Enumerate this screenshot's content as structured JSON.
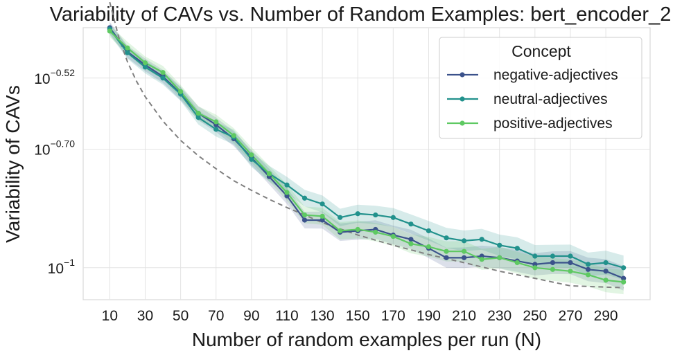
{
  "chart_data": {
    "type": "line",
    "title": "Variability of CAVs vs. Number of Random Examples: bert_encoder_2",
    "xlabel": "Number of random examples per run (N)",
    "ylabel": "Variability of CAVs",
    "y_scale": "log",
    "xlim": [
      -5,
      315
    ],
    "ylim": [
      0.083,
      0.405
    ],
    "x_ticks": [
      10,
      30,
      50,
      70,
      90,
      110,
      130,
      150,
      170,
      190,
      210,
      230,
      250,
      270,
      290
    ],
    "y_ticks": [
      {
        "value": 0.302,
        "base": "10",
        "exp": "−0.52"
      },
      {
        "value": 0.1995,
        "base": "10",
        "exp": "−0.70"
      },
      {
        "value": 0.1,
        "base": "10",
        "exp": "−1"
      }
    ],
    "grid": true,
    "legend": {
      "title": "Concept",
      "position": "top-right"
    },
    "x": [
      10,
      20,
      30,
      40,
      50,
      60,
      70,
      80,
      90,
      100,
      110,
      120,
      130,
      140,
      150,
      160,
      170,
      180,
      190,
      200,
      210,
      220,
      230,
      240,
      250,
      260,
      270,
      280,
      290,
      300
    ],
    "series": [
      {
        "name": "negative-adjectives",
        "color": "#3b528b",
        "values": [
          0.405,
          0.352,
          0.326,
          0.305,
          0.276,
          0.246,
          0.23,
          0.212,
          0.19,
          0.17,
          0.152,
          0.132,
          0.132,
          0.123,
          0.124,
          0.125,
          0.121,
          0.118,
          0.112,
          0.106,
          0.106,
          0.107,
          0.106,
          0.104,
          0.102,
          0.103,
          0.103,
          0.099,
          0.098,
          0.094
        ]
      },
      {
        "name": "neutral-adjectives",
        "color": "#21918c",
        "values": [
          0.402,
          0.35,
          0.322,
          0.302,
          0.275,
          0.24,
          0.224,
          0.214,
          0.188,
          0.173,
          0.162,
          0.15,
          0.145,
          0.134,
          0.137,
          0.136,
          0.134,
          0.129,
          0.124,
          0.119,
          0.117,
          0.118,
          0.114,
          0.112,
          0.107,
          0.107,
          0.107,
          0.102,
          0.103,
          0.1
        ]
      },
      {
        "name": "positive-adjectives",
        "color": "#5ec962",
        "values": [
          0.397,
          0.36,
          0.33,
          0.312,
          0.279,
          0.246,
          0.234,
          0.216,
          0.193,
          0.173,
          0.155,
          0.136,
          0.135,
          0.124,
          0.125,
          0.123,
          0.12,
          0.115,
          0.113,
          0.11,
          0.11,
          0.105,
          0.106,
          0.103,
          0.1,
          0.099,
          0.098,
          0.096,
          0.093,
          0.092
        ]
      }
    ],
    "reference_curve": {
      "style": "dashed",
      "color": "#808080",
      "x": [
        10,
        15,
        20,
        25,
        30,
        40,
        50,
        60,
        70,
        80,
        90,
        100,
        110,
        120,
        130,
        150,
        170,
        190,
        210,
        230,
        250,
        270,
        300
      ],
      "values": [
        0.47,
        0.384,
        0.332,
        0.297,
        0.271,
        0.235,
        0.21,
        0.192,
        0.178,
        0.166,
        0.157,
        0.149,
        0.142,
        0.136,
        0.13,
        0.121,
        0.114,
        0.108,
        0.103,
        0.098,
        0.094,
        0.09,
        0.089
      ]
    }
  }
}
